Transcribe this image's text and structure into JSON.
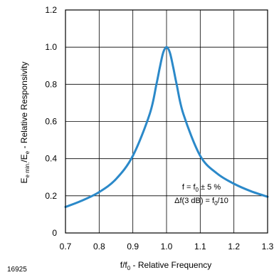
{
  "chart_data": {
    "type": "line",
    "x": [
      0.7,
      0.75,
      0.8,
      0.85,
      0.9,
      0.95,
      0.97,
      0.98,
      0.99,
      1.0,
      1.01,
      1.02,
      1.03,
      1.05,
      1.1,
      1.15,
      1.2,
      1.25,
      1.3
    ],
    "series": [
      {
        "name": "",
        "values": [
          0.14,
          0.175,
          0.22,
          0.29,
          0.415,
          0.64,
          0.8,
          0.89,
          0.97,
          1.0,
          0.97,
          0.89,
          0.8,
          0.64,
          0.415,
          0.32,
          0.265,
          0.225,
          0.195
        ],
        "color": "#2b89c9"
      }
    ],
    "xlim": [
      0.7,
      1.3
    ],
    "ylim": [
      0,
      1.2
    ],
    "xticks": [
      "0.7",
      "0.8",
      "0.9",
      "1.0",
      "1.1",
      "1.2",
      "1.3"
    ],
    "yticks": [
      "0",
      "0.2",
      "0.4",
      "0.6",
      "0.8",
      "1.0",
      "1.2"
    ],
    "xlabel": {
      "pre": "f/f",
      "sub": "0",
      "post": " - Relative Frequency"
    },
    "ylabel": {
      "pre": "E",
      "sub1": "e min.",
      "mid": "/E",
      "sub2": "e",
      "post": " - Relative Responsivity"
    },
    "annotations": {
      "line1": {
        "pre": "f = f",
        "sub": "0",
        "post": " ± 5 %"
      },
      "line2": {
        "pre": "Δf(3 dB) = f",
        "sub": "0",
        "post": "/10"
      }
    },
    "grid": true,
    "figure_id": "16925"
  }
}
